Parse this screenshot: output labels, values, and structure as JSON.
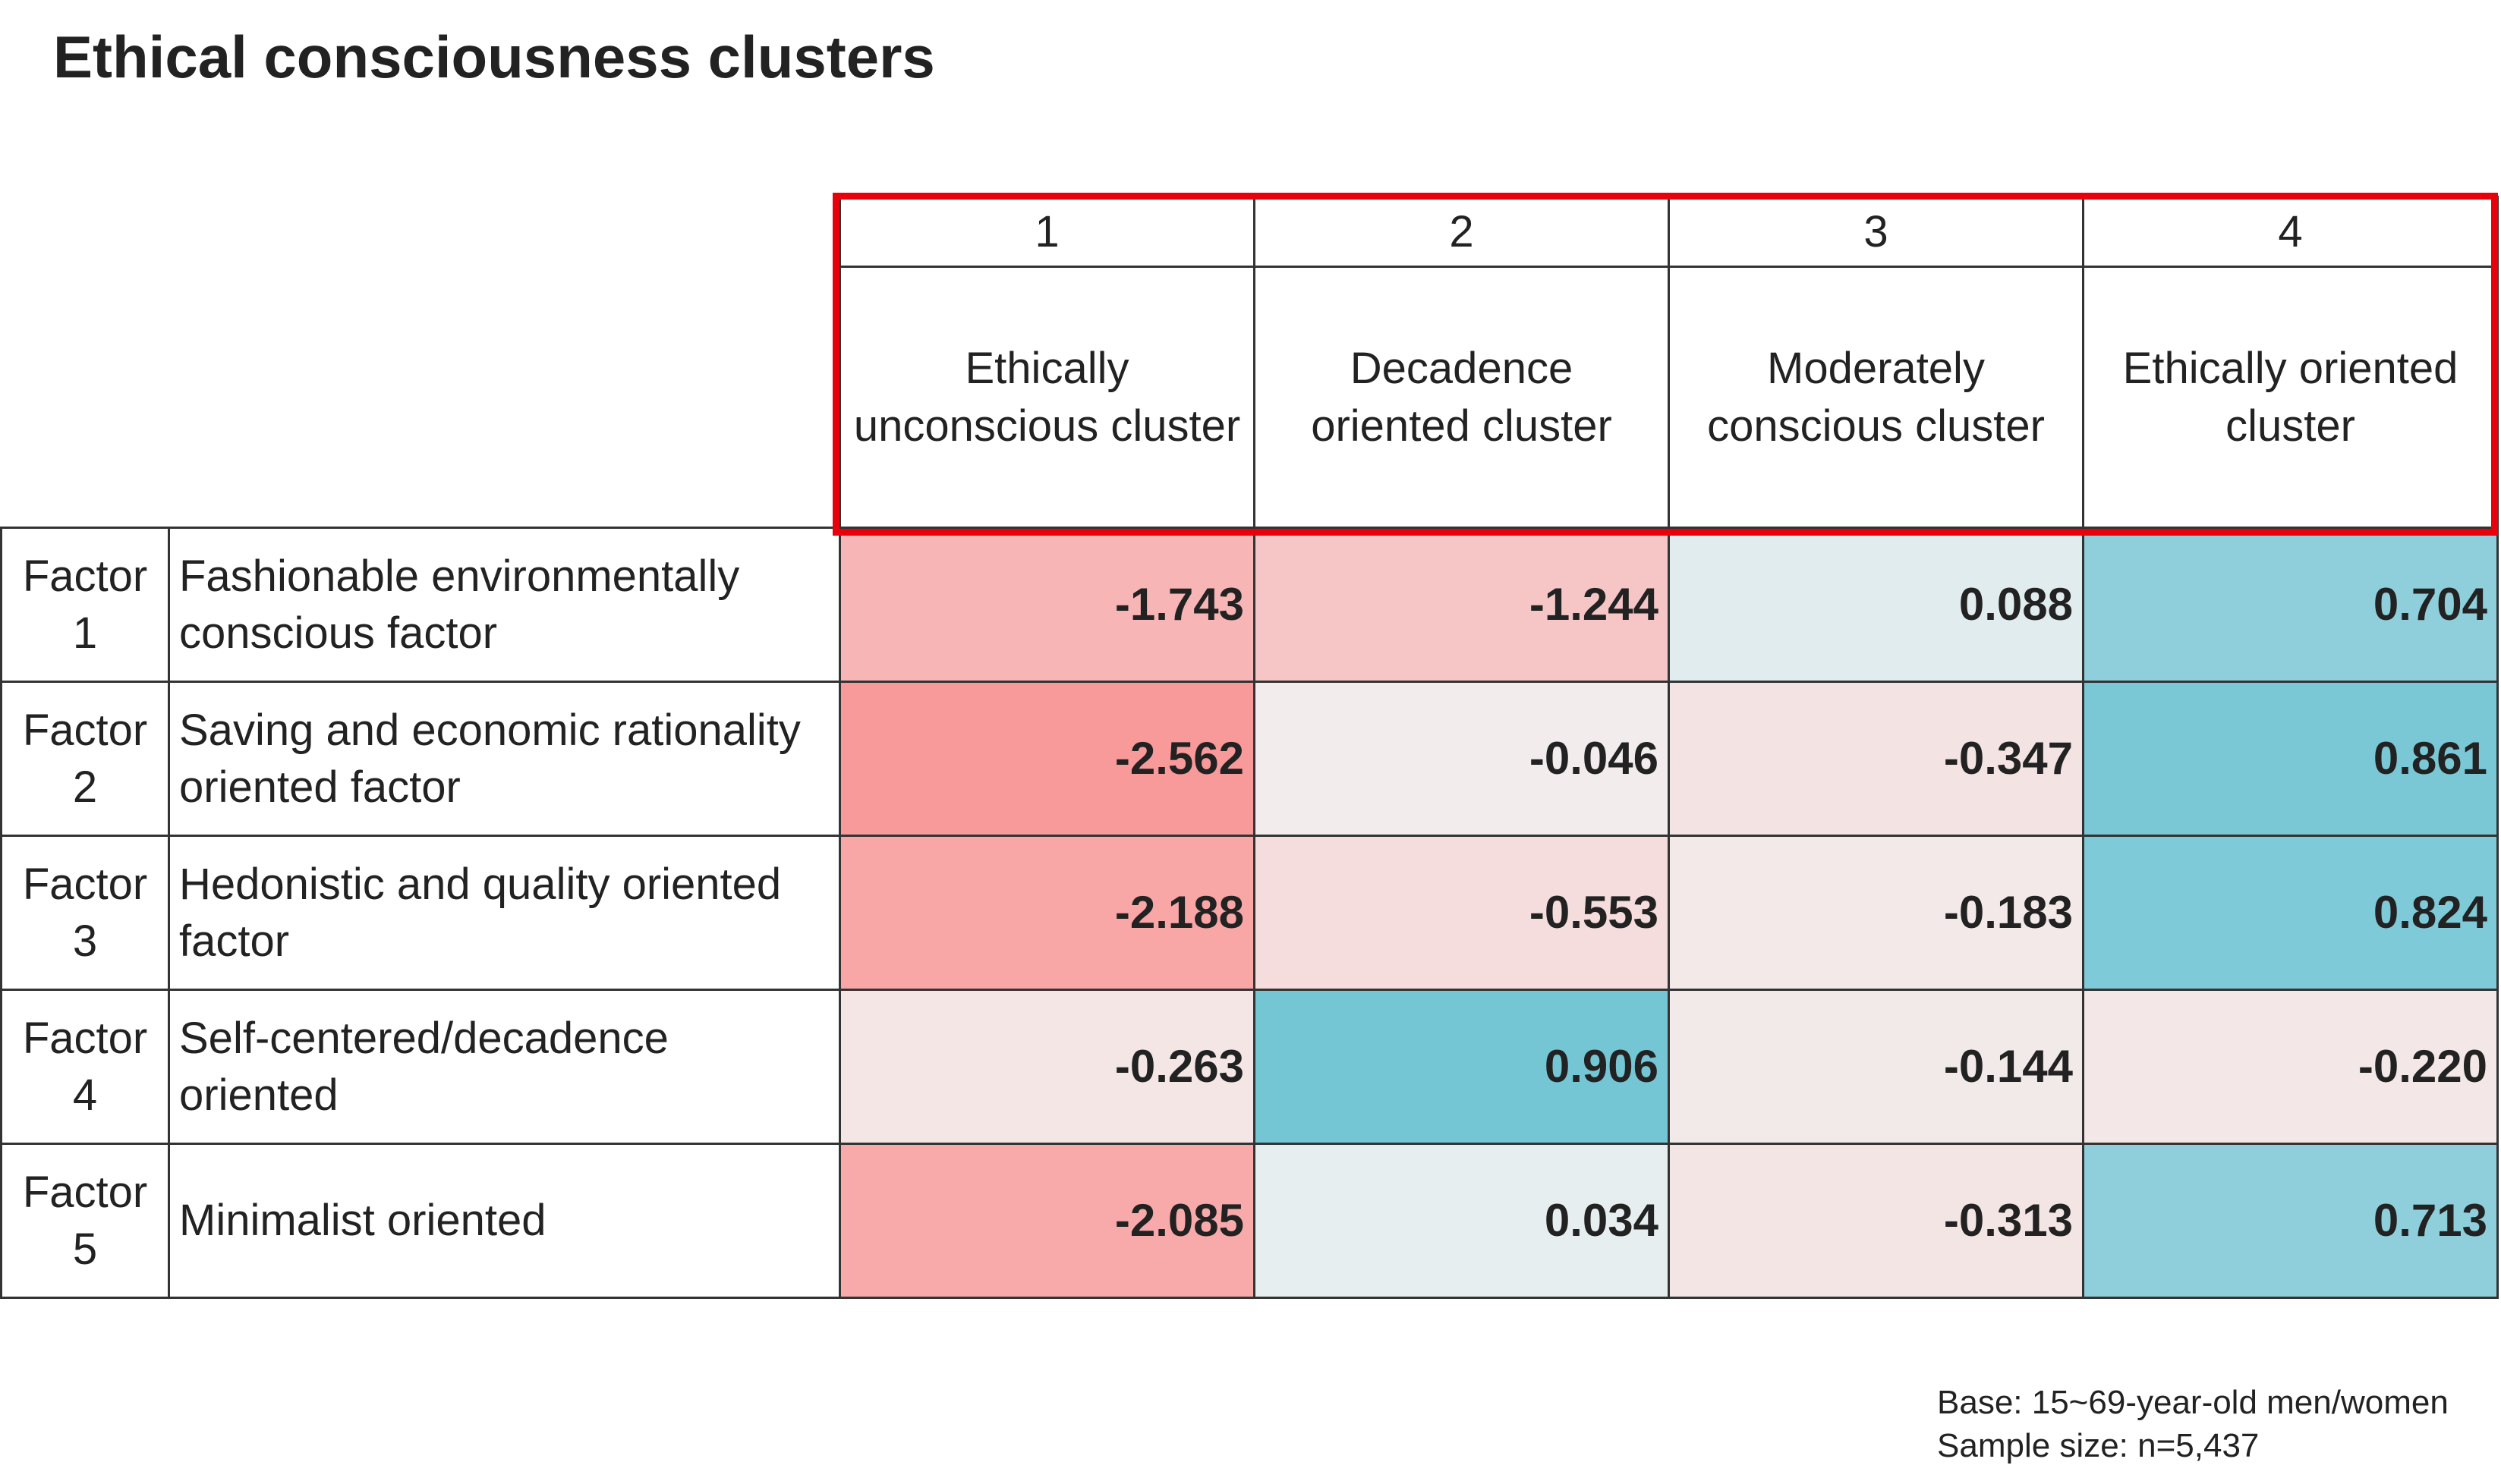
{
  "title": "Ethical consciousness clusters",
  "table": {
    "columns": [
      {
        "number": "1",
        "name": "Ethically unconscious cluster"
      },
      {
        "number": "2",
        "name": "Decadence oriented cluster"
      },
      {
        "number": "3",
        "name": "Moderately conscious cluster"
      },
      {
        "number": "4",
        "name": "Ethically oriented cluster"
      }
    ],
    "rows": [
      {
        "factor": "Factor 1",
        "description": "Fashionable environmentally conscious factor",
        "values": [
          "-1.743",
          "-1.244",
          "0.088",
          "0.704"
        ]
      },
      {
        "factor": "Factor 2",
        "description": "Saving and economic rationality oriented factor",
        "values": [
          "-2.562",
          "-0.046",
          "-0.347",
          "0.861"
        ]
      },
      {
        "factor": "Factor 3",
        "description": "Hedonistic and quality oriented factor",
        "values": [
          "-2.188",
          "-0.553",
          "-0.183",
          "0.824"
        ]
      },
      {
        "factor": "Factor 4",
        "description": "Self-centered/decadence oriented",
        "values": [
          "-0.263",
          "0.906",
          "-0.144",
          "-0.220"
        ]
      },
      {
        "factor": "Factor 5",
        "description": "Minimalist oriented",
        "values": [
          "-2.085",
          "0.034",
          "-0.313",
          "0.713"
        ]
      }
    ]
  },
  "notes": [
    "Base: 15~69-year-old men/women",
    "Sample size: n=5,437"
  ]
}
